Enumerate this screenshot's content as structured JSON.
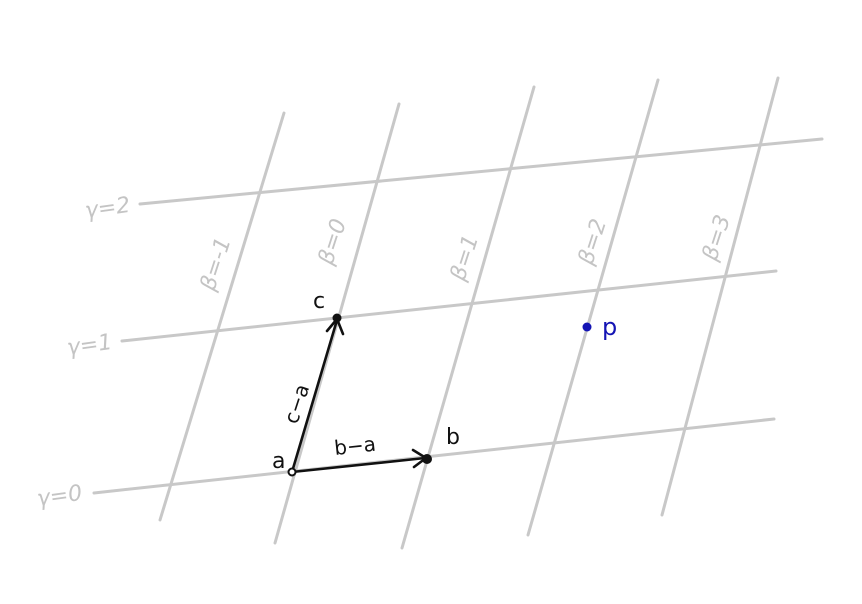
{
  "gamma_lines": [
    {
      "label": "γ=2"
    },
    {
      "label": "γ=1"
    },
    {
      "label": "γ=0"
    }
  ],
  "beta_lines": [
    {
      "label": "β=-1"
    },
    {
      "label": "β=0"
    },
    {
      "label": "β=1"
    },
    {
      "label": "β=2"
    },
    {
      "label": "β=3"
    }
  ],
  "points": {
    "a": "a",
    "b": "b",
    "c": "c",
    "p": "p"
  },
  "vectors": {
    "b_minus_a": "b−a",
    "c_minus_a": "c−a"
  },
  "colors": {
    "grid": "#c8c8c8",
    "vector": "#111111",
    "point_p": "#1414b4"
  }
}
